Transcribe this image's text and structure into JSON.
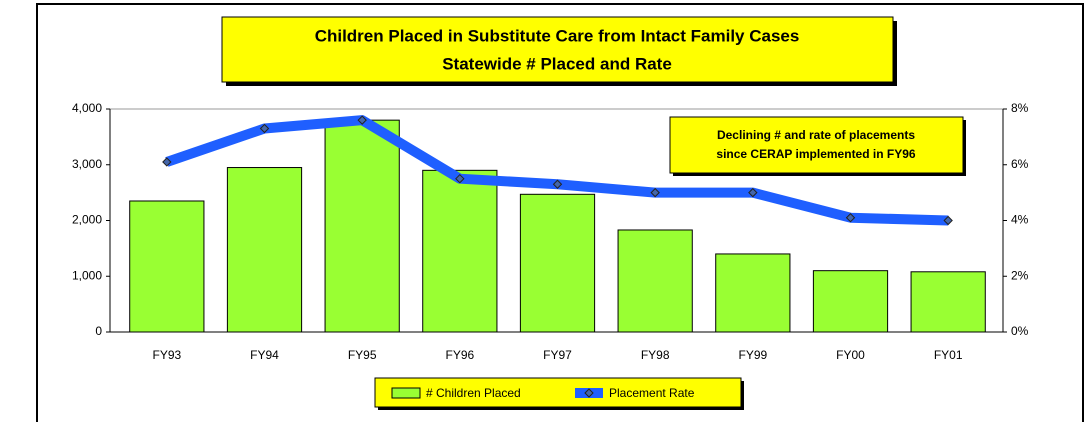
{
  "chart_data": {
    "type": "bar",
    "title": "Children Placed in Substitute Care from Intact Family Cases",
    "subtitle": "Statewide # Placed and Rate",
    "annotations": [
      "Declining # and rate of placements",
      "since CERAP implemented in FY96"
    ],
    "categories": [
      "FY93",
      "FY94",
      "FY95",
      "FY96",
      "FY97",
      "FY98",
      "FY99",
      "FY00",
      "FY01"
    ],
    "series": [
      {
        "name": "# Children Placed",
        "type": "bar",
        "color": "#99ff33",
        "values": [
          2350,
          2950,
          3800,
          2900,
          2470,
          1830,
          1400,
          1100,
          1080
        ]
      },
      {
        "name": "Placement Rate",
        "type": "line",
        "axis": "y2",
        "color": "#1f5fff",
        "values": [
          6.1,
          7.3,
          7.6,
          5.5,
          5.3,
          5.0,
          5.0,
          4.1,
          4.0
        ]
      }
    ],
    "ylim": [
      0,
      4000
    ],
    "yticks": [
      0,
      {
        "value": 1000,
        "label": "1,000"
      },
      {
        "value": 2000,
        "label": "2,000"
      },
      {
        "value": 3000,
        "label": "3,000"
      },
      {
        "value": 4000,
        "label": "4,000"
      }
    ],
    "y2lim": [
      0,
      8
    ],
    "y2ticks": [
      {
        "value": 0,
        "label": "0%"
      },
      {
        "value": 2,
        "label": "2%"
      },
      {
        "value": 4,
        "label": "4%"
      },
      {
        "value": 6,
        "label": "6%"
      },
      {
        "value": 8,
        "label": "8%"
      }
    ],
    "grid": false
  }
}
